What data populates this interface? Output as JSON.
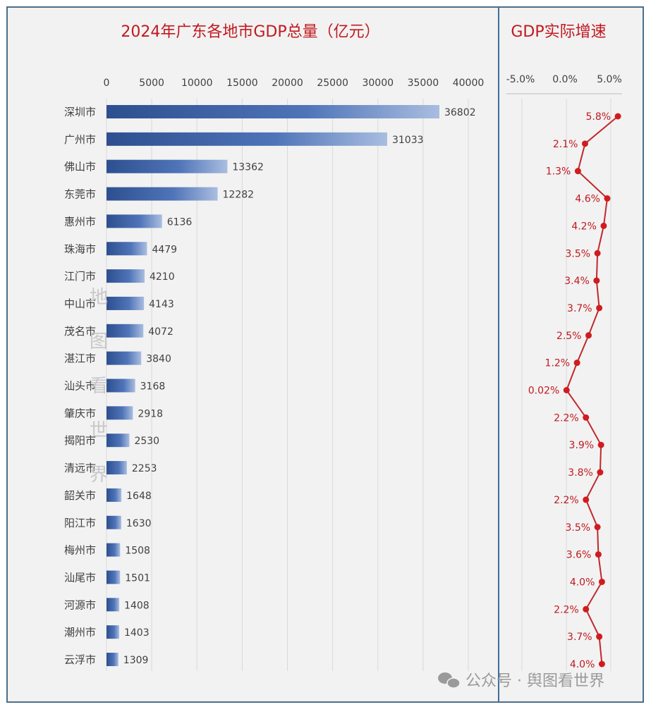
{
  "colors": {
    "bar": "#3a62a7",
    "line": "#c0282d",
    "title": "#c0191f",
    "frame": "#4a6f8a",
    "background": "#f2f2f2"
  },
  "watermark": {
    "vertical": "地图看世界",
    "footer": "公众号 · 舆图看世界",
    "footer_icon": "wechat-icon"
  },
  "chart_data": [
    {
      "type": "bar",
      "orientation": "horizontal",
      "title": "2024年广东各地市GDP总量（亿元）",
      "categories": [
        "深圳市",
        "广州市",
        "佛山市",
        "东莞市",
        "惠州市",
        "珠海市",
        "江门市",
        "中山市",
        "茂名市",
        "湛江市",
        "汕头市",
        "肇庆市",
        "揭阳市",
        "清远市",
        "韶关市",
        "阳江市",
        "梅州市",
        "汕尾市",
        "河源市",
        "潮州市",
        "云浮市"
      ],
      "values": [
        36802,
        31033,
        13362,
        12282,
        6136,
        4479,
        4210,
        4143,
        4072,
        3840,
        3168,
        2918,
        2530,
        2253,
        1648,
        1630,
        1508,
        1501,
        1408,
        1403,
        1309
      ],
      "xlim": [
        0,
        40000
      ],
      "ticks": [
        "0",
        "5000",
        "10000",
        "15000",
        "20000",
        "25000",
        "30000",
        "35000",
        "40000"
      ],
      "axis_position": "top",
      "grid": true
    },
    {
      "type": "line",
      "title": "GDP实际增速",
      "categories": [
        "深圳市",
        "广州市",
        "佛山市",
        "东莞市",
        "惠州市",
        "珠海市",
        "江门市",
        "中山市",
        "茂名市",
        "湛江市",
        "汕头市",
        "肇庆市",
        "揭阳市",
        "清远市",
        "韶关市",
        "阳江市",
        "梅州市",
        "汕尾市",
        "河源市",
        "潮州市",
        "云浮市"
      ],
      "values": [
        5.8,
        2.1,
        1.3,
        4.6,
        4.2,
        3.5,
        3.4,
        3.7,
        2.5,
        1.2,
        0.02,
        2.2,
        3.9,
        3.8,
        2.2,
        3.5,
        3.6,
        4.0,
        2.2,
        3.7,
        4.0
      ],
      "labels": [
        "5.8%",
        "2.1%",
        "1.3%",
        "4.6%",
        "4.2%",
        "3.5%",
        "3.4%",
        "3.7%",
        "2.5%",
        "1.2%",
        "0.02%",
        "2.2%",
        "3.9%",
        "3.8%",
        "2.2%",
        "3.5%",
        "3.6%",
        "4.0%",
        "2.2%",
        "3.7%",
        "4.0%"
      ],
      "xlim": [
        -5.0,
        5.0
      ],
      "ticks": [
        "-5.0%",
        "0.0%",
        "5.0%"
      ],
      "axis_position": "top",
      "grid": true
    }
  ]
}
